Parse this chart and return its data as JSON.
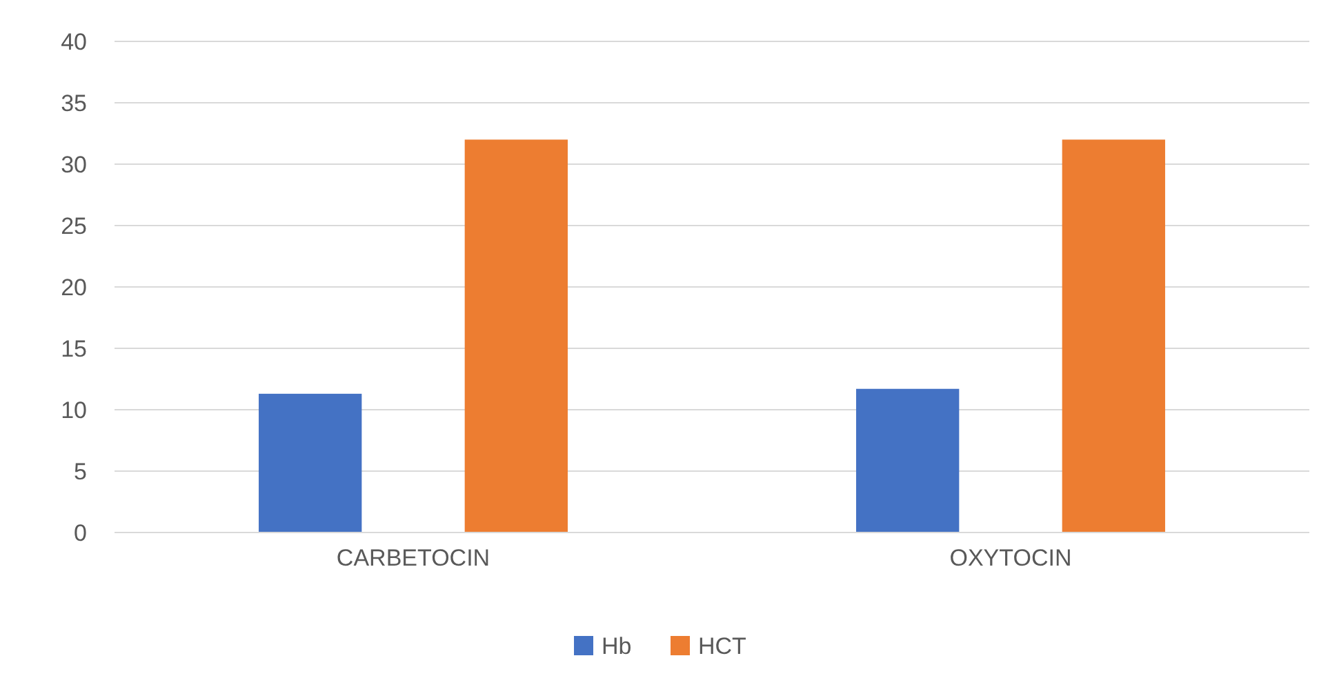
{
  "chart_data": {
    "type": "bar",
    "categories": [
      "CARBETOCIN",
      "OXYTOCIN"
    ],
    "series": [
      {
        "name": "Hb",
        "color": "#4472c4",
        "values": [
          11.3,
          11.7
        ]
      },
      {
        "name": "HCT",
        "color": "#ed7d31",
        "values": [
          32,
          32
        ]
      }
    ],
    "ylim": [
      0,
      40
    ],
    "yticks": [
      0,
      5,
      10,
      15,
      20,
      25,
      30,
      35,
      40
    ],
    "grid": "y",
    "legend": "bottom"
  }
}
